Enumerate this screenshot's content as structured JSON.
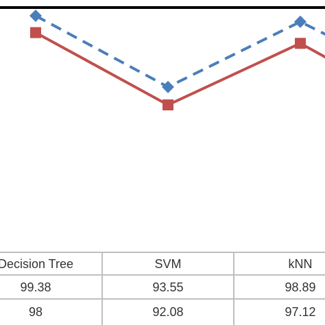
{
  "chart_data": {
    "type": "line",
    "categories": [
      "Decision Tree",
      "SVM",
      "kNN"
    ],
    "series": [
      {
        "values": [
          99.38,
          93.55,
          98.89
        ],
        "color": "#4a7ebb",
        "line_style": "dashed",
        "marker": "diamond"
      },
      {
        "values": [
          98,
          92.08,
          97.12
        ],
        "color": "#c0504d",
        "line_style": "solid",
        "marker": "square"
      }
    ],
    "table": {
      "header": [
        "Decision Tree",
        "SVM",
        "kNN"
      ],
      "rows": [
        [
          "99.38",
          "93.55",
          "98.89"
        ],
        [
          "98",
          "92.08",
          "97.12"
        ]
      ]
    },
    "grid": false,
    "legend": "none"
  }
}
